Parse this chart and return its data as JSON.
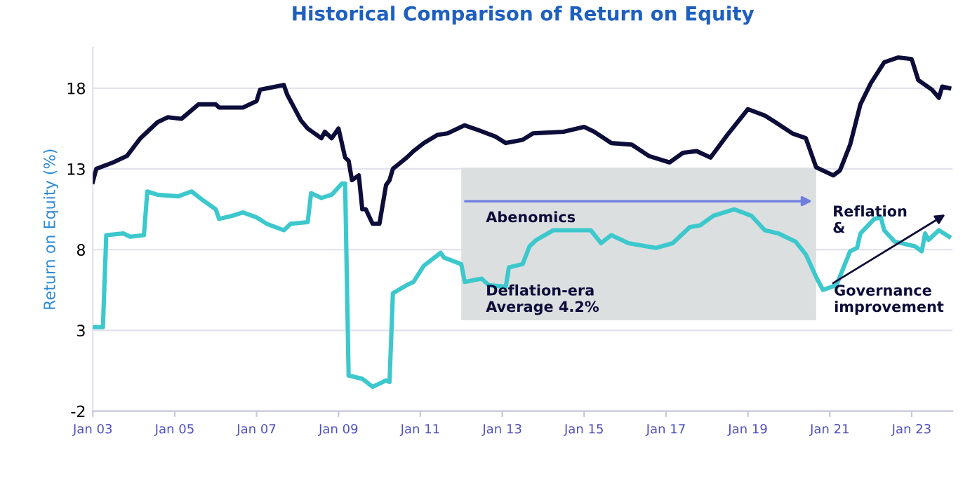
{
  "chart_data": {
    "type": "line",
    "title": "Historical Comparison of Return on Equity",
    "ylabel": "Return on Equity (%)",
    "series": [
      {
        "color": "#0d0d3a",
        "x": [
          "2003-01",
          "2003-02",
          "2003-07",
          "2003-11",
          "2004-03",
          "2004-08",
          "2004-11",
          "2005-03",
          "2005-08",
          "2006-01",
          "2006-02",
          "2006-09",
          "2007-01",
          "2007-02",
          "2007-09",
          "2007-10",
          "2008-02",
          "2008-04",
          "2008-08",
          "2008-09",
          "2008-11",
          "2009-01",
          "2009-03",
          "2009-04",
          "2009-05",
          "2009-07",
          "2009-08",
          "2009-09",
          "2009-11",
          "2010-01",
          "2010-03",
          "2010-04",
          "2010-05",
          "2010-09",
          "2010-11",
          "2011-02",
          "2011-06",
          "2011-09",
          "2012-01",
          "2012-02",
          "2012-06",
          "2012-11",
          "2013-02",
          "2013-07",
          "2013-10",
          "2014-07",
          "2015-01",
          "2015-04",
          "2015-09",
          "2016-03",
          "2016-08",
          "2017-02",
          "2017-06",
          "2017-10",
          "2018-02",
          "2018-07",
          "2019-01",
          "2019-06",
          "2019-09",
          "2020-02",
          "2020-06",
          "2020-09",
          "2021-02",
          "2021-04",
          "2021-07",
          "2021-10",
          "2022-01",
          "2022-05",
          "2022-09",
          "2023-01",
          "2023-03",
          "2023-07",
          "2023-09",
          "2023-10",
          "2023-12"
        ],
        "values": [
          12.2,
          13.0,
          13.4,
          13.8,
          14.9,
          15.9,
          16.2,
          16.1,
          17.0,
          17.0,
          16.8,
          16.8,
          17.2,
          17.9,
          18.2,
          17.6,
          16.0,
          15.5,
          14.9,
          15.3,
          14.9,
          15.5,
          13.7,
          13.5,
          12.3,
          12.6,
          10.5,
          10.5,
          9.6,
          9.6,
          12.0,
          12.3,
          13.0,
          13.7,
          14.1,
          14.6,
          15.1,
          15.2,
          15.6,
          15.7,
          15.4,
          15.0,
          14.6,
          14.8,
          15.2,
          15.3,
          15.6,
          15.3,
          14.6,
          14.5,
          13.8,
          13.4,
          14.0,
          14.1,
          13.7,
          15.1,
          16.7,
          16.3,
          15.9,
          15.2,
          14.9,
          13.1,
          12.6,
          12.9,
          14.5,
          17.0,
          18.3,
          19.6,
          19.9,
          19.8,
          18.5,
          17.9,
          17.4,
          18.1,
          18.0
        ]
      },
      {
        "color": "#3cc8cc",
        "x": [
          "2003-01",
          "2003-04",
          "2003-05",
          "2003-10",
          "2003-12",
          "2004-04",
          "2004-05",
          "2004-08",
          "2005-02",
          "2005-06",
          "2005-09",
          "2006-01",
          "2006-02",
          "2006-06",
          "2006-09",
          "2007-01",
          "2007-04",
          "2007-09",
          "2007-11",
          "2008-04",
          "2008-05",
          "2008-08",
          "2008-11",
          "2009-02",
          "2009-03",
          "2009-04",
          "2009-08",
          "2009-11",
          "2010-03",
          "2010-04",
          "2010-05",
          "2010-09",
          "2010-11",
          "2011-02",
          "2011-07",
          "2011-08",
          "2012-01",
          "2012-02",
          "2012-07",
          "2012-09",
          "2013-02",
          "2013-03",
          "2013-07",
          "2013-09",
          "2013-11",
          "2014-04",
          "2015-03",
          "2015-06",
          "2015-09",
          "2016-02",
          "2016-10",
          "2017-03",
          "2017-08",
          "2017-11",
          "2018-03",
          "2018-09",
          "2019-02",
          "2019-06",
          "2019-10",
          "2020-03",
          "2020-06",
          "2020-09",
          "2020-11",
          "2021-03",
          "2021-07",
          "2021-09",
          "2021-10",
          "2022-02",
          "2022-04",
          "2022-05",
          "2022-08",
          "2023-02",
          "2023-04",
          "2023-05",
          "2023-06",
          "2023-09",
          "2023-12"
        ],
        "values": [
          3.2,
          3.2,
          8.9,
          9.0,
          8.8,
          8.9,
          11.6,
          11.4,
          11.3,
          11.6,
          11.1,
          10.5,
          9.9,
          10.1,
          10.3,
          10.0,
          9.6,
          9.2,
          9.6,
          9.7,
          11.5,
          11.2,
          11.4,
          12.1,
          12.1,
          0.2,
          0.0,
          -0.5,
          -0.1,
          -0.2,
          5.3,
          5.8,
          6.0,
          7.0,
          7.8,
          7.5,
          7.1,
          6.0,
          6.2,
          5.8,
          5.7,
          6.9,
          7.1,
          8.2,
          8.6,
          9.2,
          9.2,
          8.4,
          8.9,
          8.4,
          8.1,
          8.4,
          9.4,
          9.5,
          10.1,
          10.5,
          10.1,
          9.2,
          9.0,
          8.5,
          7.7,
          6.3,
          5.5,
          5.8,
          7.9,
          8.1,
          9.0,
          9.9,
          10.0,
          9.2,
          8.5,
          8.2,
          7.9,
          9.0,
          8.6,
          9.2,
          8.8
        ]
      }
    ],
    "xlim": [
      "2003-01",
      "2024-01"
    ],
    "xticks": [
      {
        "value": "2003-01",
        "label": "Jan 03"
      },
      {
        "value": "2005-01",
        "label": "Jan 05"
      },
      {
        "value": "2007-01",
        "label": "Jan 07"
      },
      {
        "value": "2009-01",
        "label": "Jan 09"
      },
      {
        "value": "2011-01",
        "label": "Jan 11"
      },
      {
        "value": "2013-01",
        "label": "Jan 13"
      },
      {
        "value": "2015-01",
        "label": "Jan 15"
      },
      {
        "value": "2017-01",
        "label": "Jan 17"
      },
      {
        "value": "2019-01",
        "label": "Jan 19"
      },
      {
        "value": "2021-01",
        "label": "Jan 21"
      },
      {
        "value": "2023-01",
        "label": "Jan 23"
      }
    ],
    "ylim": [
      -2,
      20.5
    ],
    "yticks": [
      -2,
      3,
      8,
      13,
      18
    ],
    "grid": "y",
    "marker": "none",
    "line_style": "solid",
    "bands": [
      {
        "axis": "x",
        "from": "2012-01",
        "to": "2020-09",
        "color": "#dcdfe0"
      }
    ],
    "annotations": [
      {
        "text": "Abenomics",
        "x": "2012-01",
        "y": 11.0
      },
      "Deflation-era\nAverage 4.2%",
      "Reflation\n&",
      {
        "text": "Governance\nimprovement",
        "x": "2021-01",
        "y": 5.8
      }
    ]
  }
}
